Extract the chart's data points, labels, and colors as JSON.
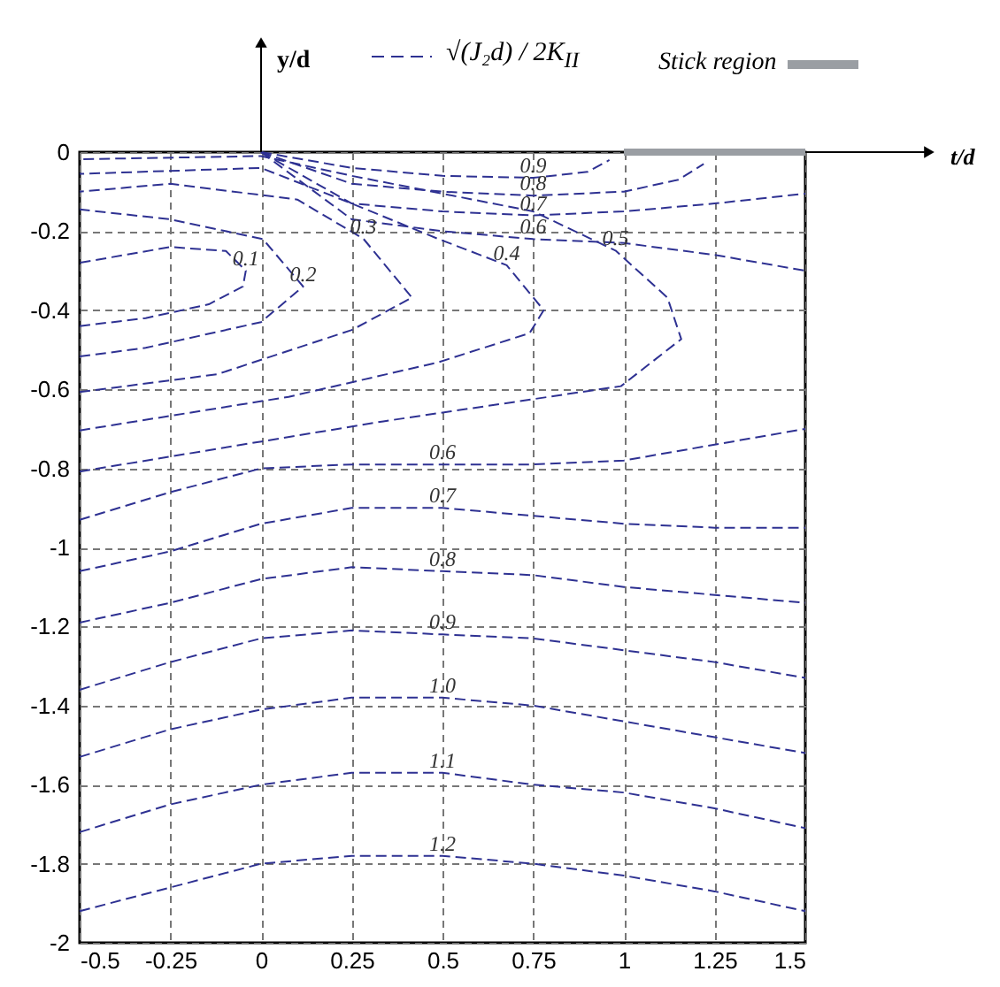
{
  "chart_data": {
    "type": "line",
    "annotations": [
      "t/d"
    ],
    "ylabel": "y/d",
    "legend_title": "√(J₂d) / 2K$_{II}$",
    "legend": "top",
    "grid": true,
    "line_style": "dashed",
    "xlim": [
      -0.5,
      1.5
    ],
    "ylim": [
      -2,
      0
    ],
    "xticks": [
      -0.5,
      -0.25,
      0,
      0.25,
      0.5,
      0.75,
      1,
      1.25,
      1.5
    ],
    "yticks": [
      -2,
      -1.8,
      -1.6,
      -1.4,
      -1.2,
      -1,
      -0.8,
      -0.6,
      -0.4,
      -0.2,
      0
    ],
    "series": [
      {
        "name": "Stick region",
        "color": "#9a9ea3",
        "line_style": "solid",
        "x": [
          1,
          1.5
        ],
        "values": [
          0,
          0
        ]
      },
      {
        "name": "0.1",
        "color": "#2e3192",
        "x": [
          -0.5,
          -0.318,
          -0.144,
          -0.05,
          -0.042,
          -0.097,
          -0.25,
          -0.5
        ],
        "values": [
          -0.44,
          -0.42,
          -0.385,
          -0.34,
          -0.3,
          -0.25,
          -0.24,
          -0.28
        ]
      },
      {
        "name": "0.2",
        "color": "#2e3192",
        "x": [
          -0.5,
          -0.318,
          0,
          0.116,
          0.005,
          -0.25,
          -0.5
        ],
        "values": [
          -0.517,
          -0.495,
          -0.43,
          -0.34,
          -0.22,
          -0.17,
          -0.145
        ]
      },
      {
        "name": "0.3",
        "color": "#2e3192",
        "x": [
          -0.5,
          -0.121,
          0.25,
          0.416,
          0.282,
          0.1,
          -0.25,
          -0.5
        ],
        "values": [
          -0.607,
          -0.562,
          -0.45,
          -0.368,
          -0.219,
          -0.12,
          -0.08,
          -0.1
        ]
      },
      {
        "name": "0.4",
        "color": "#2e3192",
        "x": [
          -0.5,
          0.076,
          0.487,
          0.74,
          0.779,
          0.677,
          0.487,
          0.25,
          0,
          -0.5
        ],
        "values": [
          -0.704,
          -0.619,
          -0.532,
          -0.458,
          -0.4,
          -0.286,
          -0.219,
          -0.13,
          -0.04,
          -0.055
        ]
      },
      {
        "name": "0.5",
        "color": "#2e3192",
        "x": [
          -0.5,
          0.337,
          0.992,
          1.158,
          1.12,
          0.977,
          0.75,
          0.25,
          0,
          -0.5
        ],
        "values": [
          -0.808,
          -0.681,
          -0.592,
          -0.473,
          -0.368,
          -0.249,
          -0.15,
          -0.06,
          -0.01,
          -0.018
        ]
      },
      {
        "name": "0.6",
        "color": "#2e3192",
        "x": [
          -0.5,
          -0.25,
          0,
          0.25,
          0.5,
          0.75,
          1,
          1.25,
          1.5
        ],
        "values": [
          -0.93,
          -0.86,
          -0.8,
          -0.79,
          -0.79,
          -0.79,
          -0.78,
          -0.74,
          -0.7
        ]
      },
      {
        "name": "0.6",
        "color": "#2e3192",
        "x": [
          0,
          0.25,
          0.5,
          0.75,
          1,
          1.25,
          1.5
        ],
        "values": [
          0,
          -0.17,
          -0.2,
          -0.22,
          -0.23,
          -0.26,
          -0.3
        ]
      },
      {
        "name": "0.7",
        "color": "#2e3192",
        "x": [
          0,
          0.25,
          0.5,
          0.75,
          1,
          1.25,
          1.5
        ],
        "values": [
          0,
          -0.13,
          -0.15,
          -0.16,
          -0.15,
          -0.13,
          -0.105
        ]
      },
      {
        "name": "0.8",
        "color": "#2e3192",
        "x": [
          0,
          0.25,
          0.5,
          0.75,
          1,
          1.15,
          1.22
        ],
        "values": [
          0,
          -0.08,
          -0.1,
          -0.11,
          -0.1,
          -0.07,
          -0.03
        ]
      },
      {
        "name": "0.9",
        "color": "#2e3192",
        "x": [
          0,
          0.25,
          0.5,
          0.75,
          0.9,
          0.96
        ],
        "values": [
          0,
          -0.04,
          -0.06,
          -0.065,
          -0.05,
          -0.02
        ]
      },
      {
        "name": "0.7",
        "color": "#2e3192",
        "x": [
          -0.5,
          -0.25,
          0,
          0.25,
          0.5,
          0.75,
          1,
          1.25,
          1.5
        ],
        "values": [
          -1.06,
          -1.01,
          -0.94,
          -0.9,
          -0.9,
          -0.92,
          -0.94,
          -0.95,
          -0.95
        ]
      },
      {
        "name": "0.8",
        "color": "#2e3192",
        "x": [
          -0.5,
          -0.25,
          0,
          0.25,
          0.5,
          0.75,
          1,
          1.25,
          1.5
        ],
        "values": [
          -1.19,
          -1.14,
          -1.08,
          -1.05,
          -1.06,
          -1.07,
          -1.1,
          -1.12,
          -1.14
        ]
      },
      {
        "name": "0.9",
        "color": "#2e3192",
        "x": [
          -0.5,
          -0.25,
          0,
          0.25,
          0.5,
          0.75,
          1,
          1.25,
          1.5
        ],
        "values": [
          -1.36,
          -1.29,
          -1.23,
          -1.21,
          -1.22,
          -1.23,
          -1.26,
          -1.29,
          -1.33
        ]
      },
      {
        "name": "1.0",
        "color": "#2e3192",
        "x": [
          -0.5,
          -0.25,
          0,
          0.25,
          0.5,
          0.75,
          1,
          1.25,
          1.5
        ],
        "values": [
          -1.53,
          -1.46,
          -1.41,
          -1.38,
          -1.38,
          -1.4,
          -1.44,
          -1.48,
          -1.52
        ]
      },
      {
        "name": "1.1",
        "color": "#2e3192",
        "x": [
          -0.5,
          -0.25,
          0,
          0.25,
          0.5,
          0.75,
          1,
          1.25,
          1.5
        ],
        "values": [
          -1.72,
          -1.65,
          -1.6,
          -1.57,
          -1.57,
          -1.6,
          -1.62,
          -1.66,
          -1.71
        ]
      },
      {
        "name": "1.2",
        "color": "#2e3192",
        "x": [
          -0.5,
          -0.25,
          0,
          0.25,
          0.5,
          0.75,
          1,
          1.25,
          1.5
        ],
        "values": [
          -1.92,
          -1.86,
          -1.8,
          -1.78,
          -1.78,
          -1.8,
          -1.83,
          -1.87,
          -1.92
        ]
      }
    ]
  }
}
